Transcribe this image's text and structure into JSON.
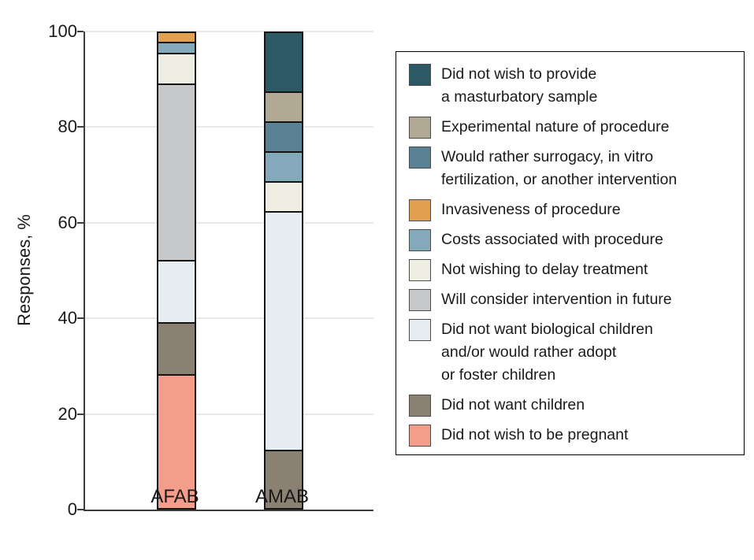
{
  "chart_data": {
    "type": "bar",
    "subtype": "stacked-percentage",
    "title": "",
    "xlabel": "",
    "ylabel": "Responses, %",
    "ylim": [
      0,
      100
    ],
    "yticks": [
      0,
      20,
      40,
      60,
      80,
      100
    ],
    "grid": "horizontal",
    "legend_position": "right",
    "categories": [
      "AFAB",
      "AMAB"
    ],
    "series": [
      {
        "name": "Did not wish to be pregnant",
        "color": "#f39e8b",
        "values": [
          28.3,
          0
        ]
      },
      {
        "name": "Did not want children",
        "color": "#8a8173",
        "values": [
          10.9,
          12.5
        ]
      },
      {
        "name": "Did not want biological children and/or would rather adopt or foster children",
        "color": "#e7eef3",
        "values": [
          13.0,
          50.0
        ]
      },
      {
        "name": "Will consider intervention in future",
        "color": "#c6c8ca",
        "values": [
          37.0,
          0
        ]
      },
      {
        "name": "Not wishing to delay treatment",
        "color": "#efeee2",
        "values": [
          6.5,
          6.3
        ]
      },
      {
        "name": "Costs associated with procedure",
        "color": "#84a9ba",
        "values": [
          2.2,
          6.3
        ]
      },
      {
        "name": "Invasiveness of procedure",
        "color": "#e2a050",
        "values": [
          2.2,
          0
        ]
      },
      {
        "name": "Would rather surrogacy, in vitro fertilization, or another intervention",
        "color": "#5a8294",
        "values": [
          0,
          6.3
        ]
      },
      {
        "name": "Experimental nature of procedure",
        "color": "#b2a994",
        "values": [
          0,
          6.3
        ]
      },
      {
        "name": "Did not wish to provide a masturbatory sample",
        "color": "#2d5866",
        "values": [
          0,
          12.5
        ]
      }
    ],
    "legend": [
      {
        "label": "Did not wish to provide\na masturbatory sample",
        "color": "#2d5866"
      },
      {
        "label": "Experimental nature of procedure",
        "color": "#b2a994"
      },
      {
        "label": "Would rather surrogacy, in vitro\nfertilization, or another intervention",
        "color": "#5a8294"
      },
      {
        "label": "Invasiveness of procedure",
        "color": "#e2a050"
      },
      {
        "label": "Costs associated with procedure",
        "color": "#84a9ba"
      },
      {
        "label": "Not wishing to delay treatment",
        "color": "#efeee2"
      },
      {
        "label": "Will consider intervention in future",
        "color": "#c6c8ca"
      },
      {
        "label": "Did not want biological children\nand/or would rather adopt\nor foster children",
        "color": "#e7eef3"
      },
      {
        "label": "Did not want children",
        "color": "#8a8173"
      },
      {
        "label": "Did not wish to be pregnant",
        "color": "#f39e8b"
      }
    ]
  }
}
